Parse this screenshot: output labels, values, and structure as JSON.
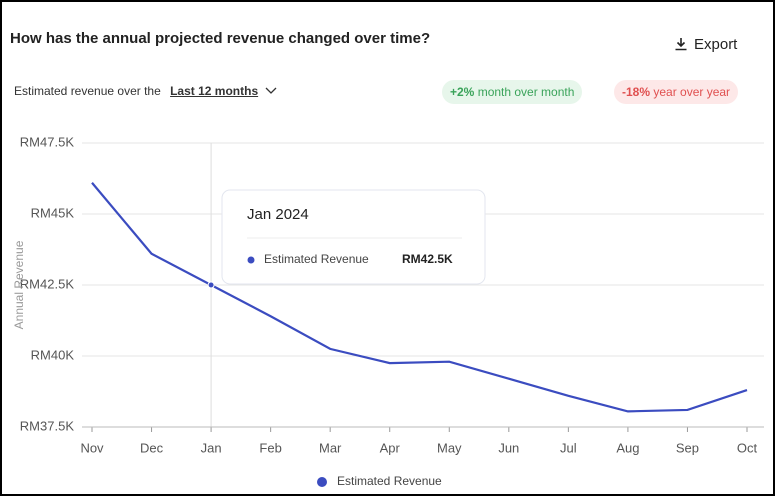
{
  "header": {
    "title": "How has the annual projected revenue changed over time?",
    "export": "Export",
    "subtitle": "Estimated revenue over the",
    "period": "Last 12 months",
    "badges": [
      {
        "value": "+2%",
        "text": " month over month"
      },
      {
        "value": "-18%",
        "text": " year over year"
      }
    ]
  },
  "chart_data": {
    "type": "line",
    "ylabel": "Annual Revenue",
    "categories": [
      "Nov",
      "Dec",
      "Jan",
      "Feb",
      "Mar",
      "Apr",
      "May",
      "Jun",
      "Jul",
      "Aug",
      "Sep",
      "Oct"
    ],
    "series": [
      {
        "name": "Estimated Revenue",
        "color": "#3b4cc0",
        "values": [
          46100,
          43600,
          42500,
          41400,
          40250,
          39750,
          39800,
          39200,
          38600,
          38050,
          38100,
          38800
        ]
      }
    ],
    "ylim": [
      37500,
      47500
    ],
    "yticks": [
      {
        "value": 37500,
        "label": "RM37.5K"
      },
      {
        "value": 40000,
        "label": "RM40K"
      },
      {
        "value": 42500,
        "label": "RM42.5K"
      },
      {
        "value": 45000,
        "label": "RM45K"
      },
      {
        "value": 47500,
        "label": "RM47.5K"
      }
    ],
    "grid": true,
    "tooltip": {
      "title": "Jan 2024",
      "value": 42500,
      "value_label": "RM42.5K"
    }
  }
}
